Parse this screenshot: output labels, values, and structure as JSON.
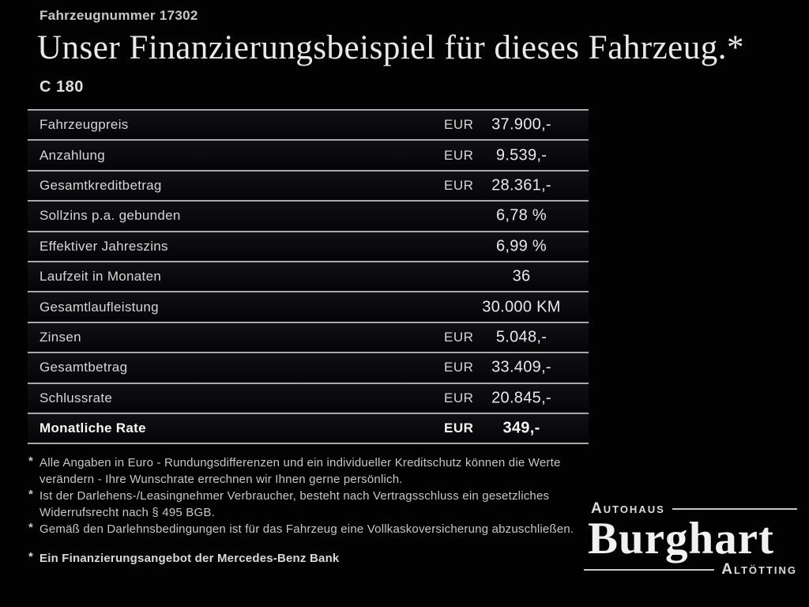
{
  "header": {
    "vehicle_number": "Fahrzeugnummer 17302",
    "title": "Unser Finanzierungsbeispiel für dieses Fahrzeug.*",
    "model": "C 180"
  },
  "table": {
    "rows": [
      {
        "label": "Fahrzeugpreis",
        "currency": "EUR",
        "value": "37.900,-",
        "bold": false
      },
      {
        "label": "Anzahlung",
        "currency": "EUR",
        "value": "9.539,-",
        "bold": false
      },
      {
        "label": "Gesamtkreditbetrag",
        "currency": "EUR",
        "value": "28.361,-",
        "bold": false
      },
      {
        "label": "Sollzins p.a. gebunden",
        "currency": "",
        "value": "6,78 %",
        "bold": false
      },
      {
        "label": "Effektiver Jahreszins",
        "currency": "",
        "value": "6,99 %",
        "bold": false
      },
      {
        "label": "Laufzeit in Monaten",
        "currency": "",
        "value": "36",
        "bold": false
      },
      {
        "label": "Gesamtlaufleistung",
        "currency": "",
        "value": "30.000 KM",
        "bold": false
      },
      {
        "label": "Zinsen",
        "currency": "EUR",
        "value": "5.048,-",
        "bold": false
      },
      {
        "label": "Gesamtbetrag",
        "currency": "EUR",
        "value": "33.409,-",
        "bold": false
      },
      {
        "label": "Schlussrate",
        "currency": "EUR",
        "value": "20.845,-",
        "bold": false
      },
      {
        "label": "Monatliche Rate",
        "currency": "EUR",
        "value": "349,-",
        "bold": true
      }
    ]
  },
  "footnotes": {
    "marker": "*",
    "items": [
      "Alle Angaben in Euro - Rundungsdifferenzen und ein individueller Kreditschutz können die Werte verändern - Ihre Wunschrate errechnen wir Ihnen gerne persönlich.",
      "Ist der Darlehens-/Leasingnehmer Verbraucher, besteht nach Vertragsschluss ein gesetzliches Widerrufsrecht nach § 495 BGB.",
      "Gemäß den Darlehnsbedingungen ist für das Fahrzeug eine Vollkaskoversicherung abzuschließen."
    ],
    "bank_note": "Ein Finanzierungsangebot der Mercedes-Benz Bank"
  },
  "logo": {
    "top": "Autohaus",
    "name": "Burghart",
    "bottom": "Altötting"
  },
  "colors": {
    "background": "#020202",
    "separator_line": "#a9a9a9",
    "text_primary": "#e9e9e9",
    "text_secondary": "#c7c7c7"
  }
}
